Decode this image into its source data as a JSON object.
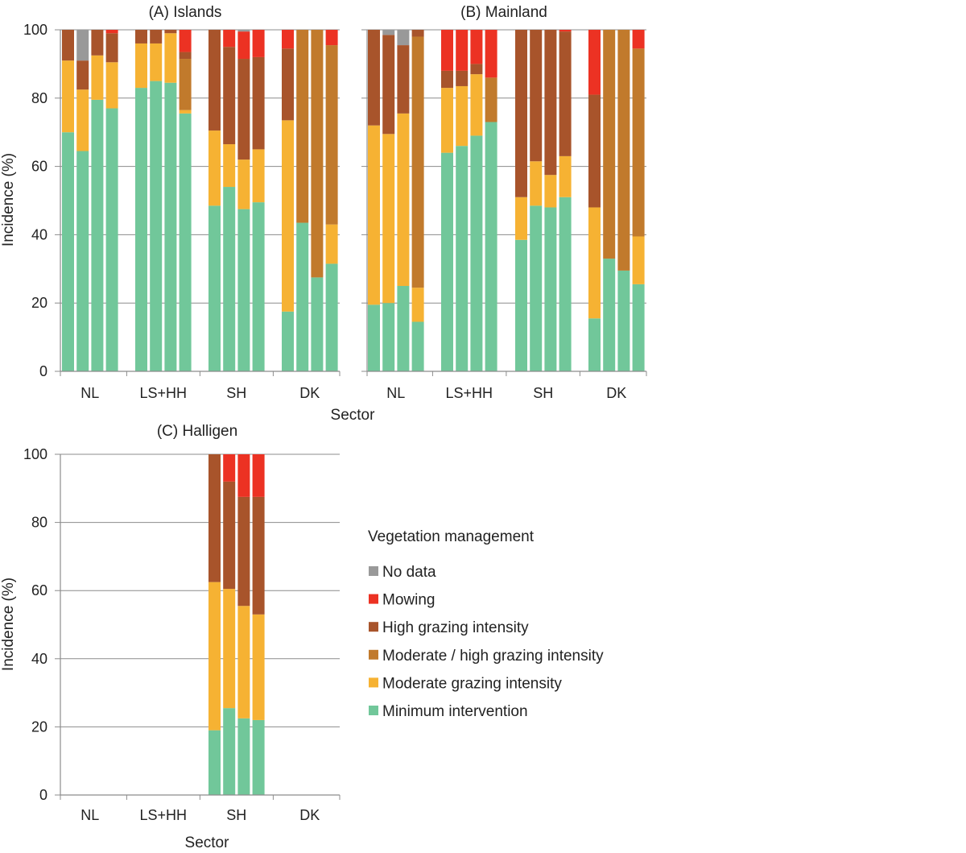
{
  "chart_data": [
    {
      "type": "bar",
      "stacked": true,
      "title": "(A) Islands",
      "xlabel": "Sector",
      "ylabel": "Incidence (%)",
      "ylim": [
        0,
        100
      ],
      "yticks": [
        0,
        20,
        40,
        60,
        80,
        100
      ],
      "grid": true,
      "categories": [
        "NL",
        "LS+HH",
        "SH",
        "DK"
      ],
      "bars_per_category": 4,
      "series_order": [
        "Minimum intervention",
        "Moderate grazing intensity",
        "Moderate / high grazing intensity",
        "High grazing intensity",
        "Mowing",
        "No data"
      ],
      "groups": [
        {
          "category": "NL",
          "bars": [
            {
              "Minimum intervention": 70,
              "Moderate grazing intensity": 21,
              "Moderate / high grazing intensity": 0,
              "High grazing intensity": 9,
              "Mowing": 0,
              "No data": 0
            },
            {
              "Minimum intervention": 64.5,
              "Moderate grazing intensity": 18,
              "Moderate / high grazing intensity": 0,
              "High grazing intensity": 8.5,
              "Mowing": 0,
              "No data": 9
            },
            {
              "Minimum intervention": 79.5,
              "Moderate grazing intensity": 13,
              "Moderate / high grazing intensity": 0,
              "High grazing intensity": 7.5,
              "Mowing": 0,
              "No data": 0
            },
            {
              "Minimum intervention": 77,
              "Moderate grazing intensity": 13.5,
              "Moderate / high grazing intensity": 0,
              "High grazing intensity": 8.5,
              "Mowing": 1,
              "No data": 0
            }
          ]
        },
        {
          "category": "LS+HH",
          "bars": [
            {
              "Minimum intervention": 83,
              "Moderate grazing intensity": 13,
              "Moderate / high grazing intensity": 0,
              "High grazing intensity": 4,
              "Mowing": 0,
              "No data": 0
            },
            {
              "Minimum intervention": 85,
              "Moderate grazing intensity": 11,
              "Moderate / high grazing intensity": 0,
              "High grazing intensity": 4,
              "Mowing": 0,
              "No data": 0
            },
            {
              "Minimum intervention": 84.5,
              "Moderate grazing intensity": 14.5,
              "Moderate / high grazing intensity": 0,
              "High grazing intensity": 1,
              "Mowing": 0,
              "No data": 0
            },
            {
              "Minimum intervention": 75.5,
              "Moderate grazing intensity": 1,
              "Moderate / high grazing intensity": 15,
              "High grazing intensity": 2,
              "Mowing": 6.5,
              "No data": 0
            }
          ]
        },
        {
          "category": "SH",
          "bars": [
            {
              "Minimum intervention": 48.5,
              "Moderate grazing intensity": 22,
              "Moderate / high grazing intensity": 0,
              "High grazing intensity": 29.5,
              "Mowing": 0,
              "No data": 0
            },
            {
              "Minimum intervention": 54,
              "Moderate grazing intensity": 12.5,
              "Moderate / high grazing intensity": 0,
              "High grazing intensity": 28.5,
              "Mowing": 5,
              "No data": 0
            },
            {
              "Minimum intervention": 47.5,
              "Moderate grazing intensity": 14.5,
              "Moderate / high grazing intensity": 0,
              "High grazing intensity": 29.5,
              "Mowing": 8,
              "No data": 0.5
            },
            {
              "Minimum intervention": 49.5,
              "Moderate grazing intensity": 15.5,
              "Moderate / high grazing intensity": 0,
              "High grazing intensity": 27,
              "Mowing": 8,
              "No data": 0
            }
          ]
        },
        {
          "category": "DK",
          "bars": [
            {
              "Minimum intervention": 17.5,
              "Moderate grazing intensity": 56,
              "Moderate / high grazing intensity": 0,
              "High grazing intensity": 21,
              "Mowing": 5.5,
              "No data": 0
            },
            {
              "Minimum intervention": 43.5,
              "Moderate grazing intensity": 0,
              "Moderate / high grazing intensity": 56.5,
              "High grazing intensity": 0,
              "Mowing": 0,
              "No data": 0
            },
            {
              "Minimum intervention": 27.5,
              "Moderate grazing intensity": 0,
              "Moderate / high grazing intensity": 72.5,
              "High grazing intensity": 0,
              "Mowing": 0,
              "No data": 0
            },
            {
              "Minimum intervention": 31.5,
              "Moderate grazing intensity": 11.5,
              "Moderate / high grazing intensity": 52.5,
              "High grazing intensity": 0,
              "Mowing": 4.5,
              "No data": 0
            }
          ]
        }
      ]
    },
    {
      "type": "bar",
      "stacked": true,
      "title": "(B) Mainland",
      "xlabel": "Sector",
      "ylabel": "",
      "ylim": [
        0,
        100
      ],
      "yticks": [
        0,
        20,
        40,
        60,
        80,
        100
      ],
      "grid": true,
      "categories": [
        "NL",
        "LS+HH",
        "SH",
        "DK"
      ],
      "bars_per_category": 4,
      "series_order": [
        "Minimum intervention",
        "Moderate grazing intensity",
        "Moderate / high grazing intensity",
        "High grazing intensity",
        "Mowing",
        "No data"
      ],
      "groups": [
        {
          "category": "NL",
          "bars": [
            {
              "Minimum intervention": 19.5,
              "Moderate grazing intensity": 52.5,
              "Moderate / high grazing intensity": 0,
              "High grazing intensity": 28,
              "Mowing": 0,
              "No data": 0
            },
            {
              "Minimum intervention": 20,
              "Moderate grazing intensity": 49.5,
              "Moderate / high grazing intensity": 0,
              "High grazing intensity": 29,
              "Mowing": 0,
              "No data": 1.5
            },
            {
              "Minimum intervention": 25,
              "Moderate grazing intensity": 50.5,
              "Moderate / high grazing intensity": 0,
              "High grazing intensity": 20,
              "Mowing": 0,
              "No data": 4.5
            },
            {
              "Minimum intervention": 14.5,
              "Moderate grazing intensity": 10,
              "Moderate / high grazing intensity": 73.5,
              "High grazing intensity": 2,
              "Mowing": 0,
              "No data": 0
            }
          ]
        },
        {
          "category": "LS+HH",
          "bars": [
            {
              "Minimum intervention": 64,
              "Moderate grazing intensity": 19,
              "Moderate / high grazing intensity": 0,
              "High grazing intensity": 5,
              "Mowing": 12,
              "No data": 0
            },
            {
              "Minimum intervention": 66,
              "Moderate grazing intensity": 17.5,
              "Moderate / high grazing intensity": 0,
              "High grazing intensity": 4.5,
              "Mowing": 12,
              "No data": 0
            },
            {
              "Minimum intervention": 69,
              "Moderate grazing intensity": 18,
              "Moderate / high grazing intensity": 0,
              "High grazing intensity": 3,
              "Mowing": 10,
              "No data": 0
            },
            {
              "Minimum intervention": 73,
              "Moderate grazing intensity": 0,
              "Moderate / high grazing intensity": 13,
              "High grazing intensity": 0,
              "Mowing": 14,
              "No data": 0
            }
          ]
        },
        {
          "category": "SH",
          "bars": [
            {
              "Minimum intervention": 38.5,
              "Moderate grazing intensity": 12.5,
              "Moderate / high grazing intensity": 0,
              "High grazing intensity": 49,
              "Mowing": 0,
              "No data": 0
            },
            {
              "Minimum intervention": 48.5,
              "Moderate grazing intensity": 13,
              "Moderate / high grazing intensity": 0,
              "High grazing intensity": 38.5,
              "Mowing": 0,
              "No data": 0
            },
            {
              "Minimum intervention": 48,
              "Moderate grazing intensity": 9.5,
              "Moderate / high grazing intensity": 0,
              "High grazing intensity": 42.5,
              "Mowing": 0,
              "No data": 0
            },
            {
              "Minimum intervention": 51,
              "Moderate grazing intensity": 12,
              "Moderate / high grazing intensity": 0,
              "High grazing intensity": 36.5,
              "Mowing": 0.5,
              "No data": 0
            }
          ]
        },
        {
          "category": "DK",
          "bars": [
            {
              "Minimum intervention": 15.5,
              "Moderate grazing intensity": 32.5,
              "Moderate / high grazing intensity": 0,
              "High grazing intensity": 33,
              "Mowing": 19,
              "No data": 0
            },
            {
              "Minimum intervention": 33,
              "Moderate grazing intensity": 0,
              "Moderate / high grazing intensity": 67,
              "High grazing intensity": 0,
              "Mowing": 0,
              "No data": 0
            },
            {
              "Minimum intervention": 29.5,
              "Moderate grazing intensity": 0,
              "Moderate / high grazing intensity": 70.5,
              "High grazing intensity": 0,
              "Mowing": 0,
              "No data": 0
            },
            {
              "Minimum intervention": 25.5,
              "Moderate grazing intensity": 14,
              "Moderate / high grazing intensity": 55,
              "High grazing intensity": 0,
              "Mowing": 5.5,
              "No data": 0
            }
          ]
        }
      ]
    },
    {
      "type": "bar",
      "stacked": true,
      "title": "(C) Halligen",
      "xlabel": "Sector",
      "ylabel": "Incidence (%)",
      "ylim": [
        0,
        100
      ],
      "yticks": [
        0,
        20,
        40,
        60,
        80,
        100
      ],
      "grid": true,
      "categories": [
        "NL",
        "LS+HH",
        "SH",
        "DK"
      ],
      "bars_per_category": 4,
      "series_order": [
        "Minimum intervention",
        "Moderate grazing intensity",
        "Moderate / high grazing intensity",
        "High grazing intensity",
        "Mowing",
        "No data"
      ],
      "groups": [
        {
          "category": "NL",
          "bars": []
        },
        {
          "category": "LS+HH",
          "bars": []
        },
        {
          "category": "SH",
          "bars": [
            {
              "Minimum intervention": 19,
              "Moderate grazing intensity": 43.5,
              "Moderate / high grazing intensity": 0,
              "High grazing intensity": 37.5,
              "Mowing": 0,
              "No data": 0
            },
            {
              "Minimum intervention": 25.5,
              "Moderate grazing intensity": 35,
              "Moderate / high grazing intensity": 0,
              "High grazing intensity": 31.5,
              "Mowing": 8,
              "No data": 0
            },
            {
              "Minimum intervention": 22.5,
              "Moderate grazing intensity": 33,
              "Moderate / high grazing intensity": 0,
              "High grazing intensity": 32,
              "Mowing": 12.5,
              "No data": 0
            },
            {
              "Minimum intervention": 22,
              "Moderate grazing intensity": 31,
              "Moderate / high grazing intensity": 0,
              "High grazing intensity": 34.5,
              "Mowing": 12.5,
              "No data": 0
            }
          ]
        },
        {
          "category": "DK",
          "bars": []
        }
      ]
    }
  ],
  "legend": {
    "title": "Vegetation management",
    "items": [
      {
        "label": "No data",
        "color": "#999999"
      },
      {
        "label": "Mowing",
        "color": "#ec3223"
      },
      {
        "label": "High grazing intensity",
        "color": "#a8542b"
      },
      {
        "label": "Moderate / high grazing intensity",
        "color": "#c17a2c"
      },
      {
        "label": "Moderate grazing intensity",
        "color": "#f6b233"
      },
      {
        "label": "Minimum intervention",
        "color": "#71c79a"
      }
    ]
  },
  "colors": {
    "Minimum intervention": "#71c79a",
    "Moderate grazing intensity": "#f6b233",
    "Moderate / high grazing intensity": "#c17a2c",
    "High grazing intensity": "#a8542b",
    "Mowing": "#ec3223",
    "No data": "#999999",
    "gridline": "#8c8c8c",
    "axis": "#8c8c8c"
  }
}
